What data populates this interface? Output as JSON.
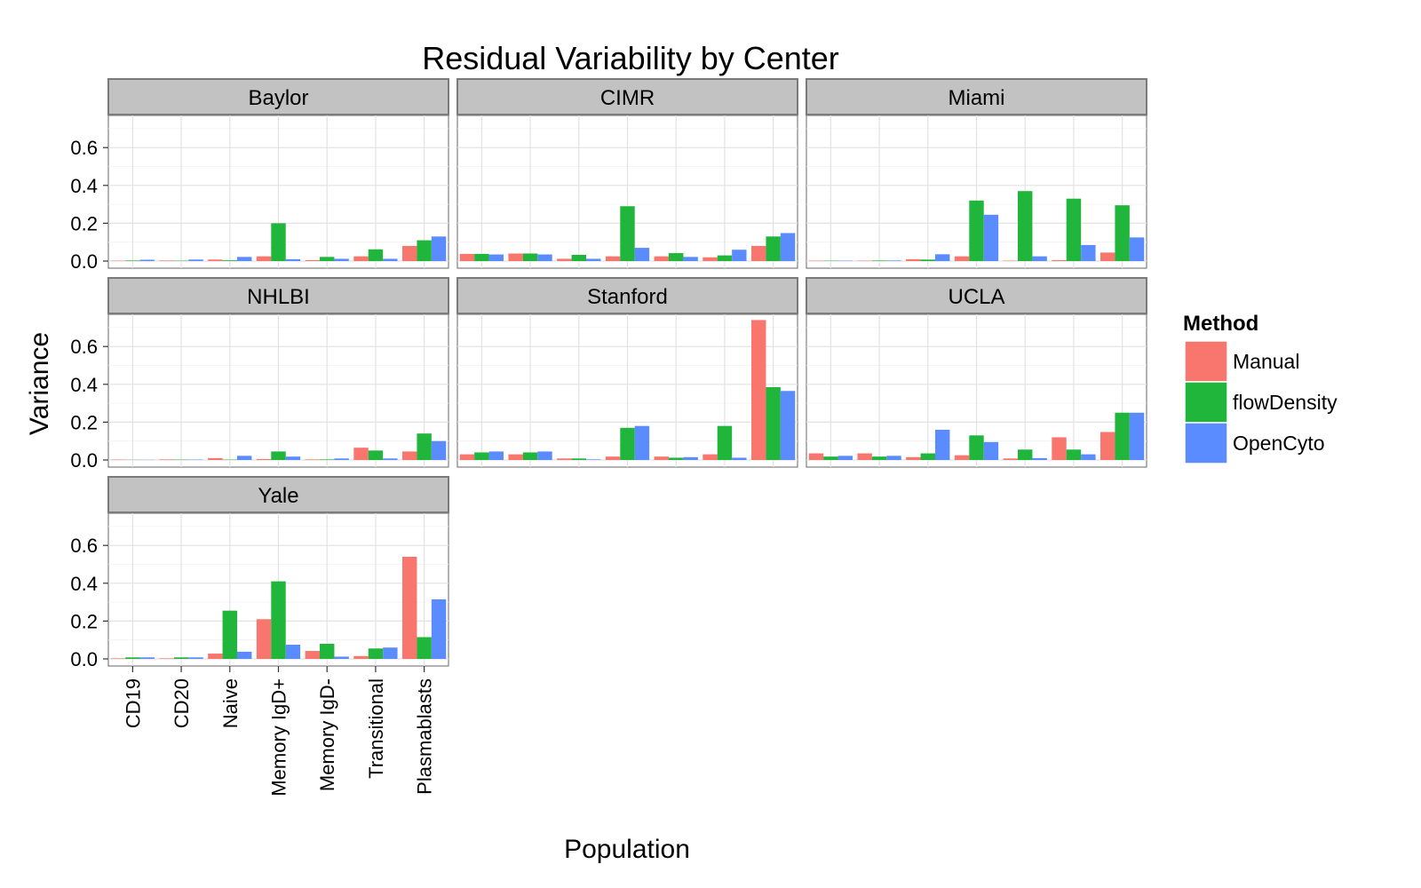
{
  "chart_data": {
    "type": "bar",
    "title": "Residual Variability by Center",
    "xlabel": "Population",
    "ylabel": "Variance",
    "ylim": [
      0,
      0.75
    ],
    "yticks": [
      "0.0",
      "0.2",
      "0.4",
      "0.6"
    ],
    "categories": [
      "CD19",
      "CD20",
      "Naive",
      "Memory IgD+",
      "Memory IgD-",
      "Transitional",
      "Plasmablasts"
    ],
    "legend": {
      "title": "Method",
      "placement": "right",
      "items": [
        {
          "name": "Manual",
          "color": "#F8766D"
        },
        {
          "name": "flowDensity",
          "color": "#1FB63B"
        },
        {
          "name": "OpenCyto",
          "color": "#5B8CFF"
        }
      ]
    },
    "facets": [
      {
        "name": "Baylor",
        "series": [
          {
            "name": "Manual",
            "values": [
              0.002,
              0.003,
              0.008,
              0.025,
              0.005,
              0.025,
              0.08
            ]
          },
          {
            "name": "flowDensity",
            "values": [
              0.003,
              0.002,
              0.004,
              0.2,
              0.022,
              0.062,
              0.11
            ]
          },
          {
            "name": "OpenCyto",
            "values": [
              0.007,
              0.008,
              0.022,
              0.01,
              0.012,
              0.012,
              0.13
            ]
          }
        ]
      },
      {
        "name": "CIMR",
        "series": [
          {
            "name": "Manual",
            "values": [
              0.038,
              0.04,
              0.012,
              0.025,
              0.025,
              0.02,
              0.08
            ]
          },
          {
            "name": "flowDensity",
            "values": [
              0.038,
              0.04,
              0.033,
              0.29,
              0.042,
              0.03,
              0.13
            ]
          },
          {
            "name": "OpenCyto",
            "values": [
              0.035,
              0.035,
              0.012,
              0.07,
              0.022,
              0.06,
              0.148
            ]
          }
        ]
      },
      {
        "name": "Miami",
        "series": [
          {
            "name": "Manual",
            "values": [
              0.002,
              0.002,
              0.01,
              0.025,
              0.002,
              0.005,
              0.045
            ]
          },
          {
            "name": "flowDensity",
            "values": [
              0.002,
              0.003,
              0.008,
              0.32,
              0.37,
              0.33,
              0.295
            ]
          },
          {
            "name": "OpenCyto",
            "values": [
              0.002,
              0.003,
              0.036,
              0.245,
              0.025,
              0.085,
              0.125
            ]
          }
        ]
      },
      {
        "name": "NHLBI",
        "series": [
          {
            "name": "Manual",
            "values": [
              0.002,
              0.003,
              0.01,
              0.005,
              0.003,
              0.065,
              0.045
            ]
          },
          {
            "name": "flowDensity",
            "values": [
              0.001,
              0.002,
              0.002,
              0.045,
              0.003,
              0.05,
              0.14
            ]
          },
          {
            "name": "OpenCyto",
            "values": [
              0.001,
              0.002,
              0.022,
              0.018,
              0.008,
              0.008,
              0.1
            ]
          }
        ]
      },
      {
        "name": "Stanford",
        "series": [
          {
            "name": "Manual",
            "values": [
              0.03,
              0.03,
              0.008,
              0.018,
              0.018,
              0.03,
              0.74
            ]
          },
          {
            "name": "flowDensity",
            "values": [
              0.04,
              0.04,
              0.008,
              0.17,
              0.012,
              0.18,
              0.385
            ]
          },
          {
            "name": "OpenCyto",
            "values": [
              0.045,
              0.045,
              0.003,
              0.18,
              0.015,
              0.012,
              0.365
            ]
          }
        ]
      },
      {
        "name": "UCLA",
        "series": [
          {
            "name": "Manual",
            "values": [
              0.035,
              0.035,
              0.015,
              0.025,
              0.008,
              0.12,
              0.148
            ]
          },
          {
            "name": "flowDensity",
            "values": [
              0.018,
              0.018,
              0.035,
              0.13,
              0.055,
              0.055,
              0.25
            ]
          },
          {
            "name": "OpenCyto",
            "values": [
              0.022,
              0.022,
              0.16,
              0.095,
              0.01,
              0.03,
              0.25
            ]
          }
        ]
      },
      {
        "name": "Yale",
        "series": [
          {
            "name": "Manual",
            "values": [
              0.003,
              0.003,
              0.028,
              0.21,
              0.042,
              0.015,
              0.54
            ]
          },
          {
            "name": "flowDensity",
            "values": [
              0.008,
              0.008,
              0.255,
              0.41,
              0.08,
              0.055,
              0.115
            ]
          },
          {
            "name": "OpenCyto",
            "values": [
              0.008,
              0.008,
              0.038,
              0.075,
              0.012,
              0.06,
              0.315
            ]
          }
        ]
      }
    ]
  }
}
